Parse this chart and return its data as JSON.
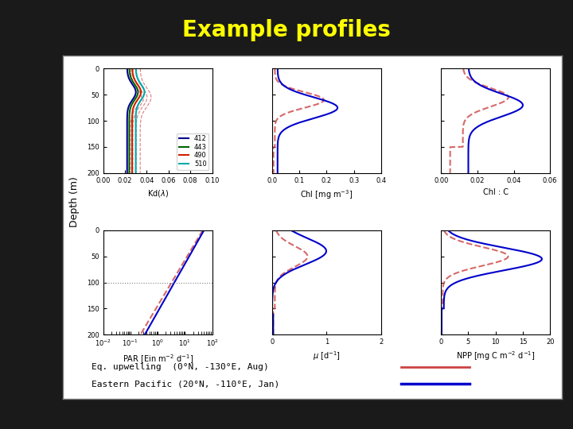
{
  "title": "Example profiles",
  "title_color": "#FFFF00",
  "bg_color": "#1a1a1a",
  "panel_bg": "#ffffff",
  "color_eq": "#cc4444",
  "color_ep": "#0000cc",
  "depth_max": 200,
  "legend_labels": [
    "412",
    "443",
    "490",
    "510"
  ],
  "legend_colors": [
    "#00008B",
    "#006400",
    "#cc2200",
    "#00AAAA"
  ],
  "ylabel": "Depth (m)",
  "legend_text1": "Eq. upwelling  (0°N, -130°E, Aug)",
  "legend_text2": "Eastern Pacific (20°N, -110°E, Jan)"
}
